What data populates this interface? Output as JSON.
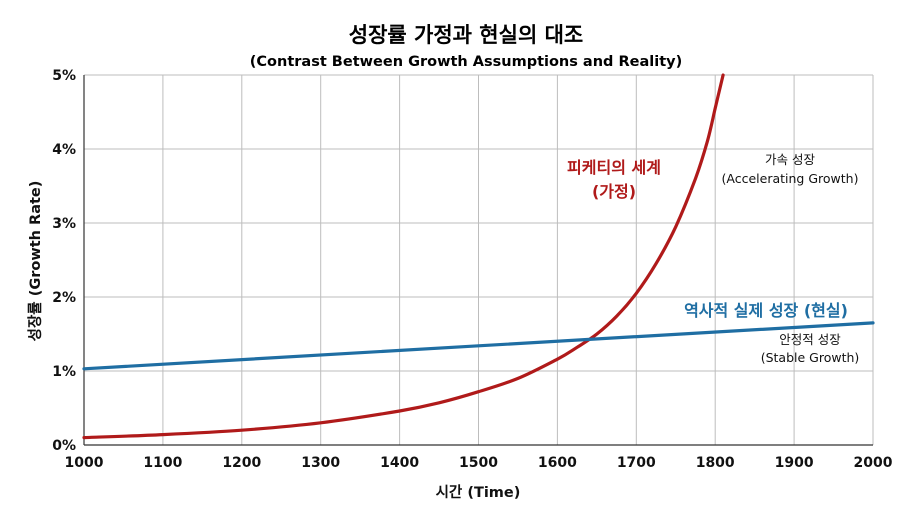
{
  "chart_data": {
    "type": "line",
    "title": "성장률 가정과 현실의 대조",
    "subtitle": "(Contrast Between Growth Assumptions and Reality)",
    "xlabel": "시간 (Time)",
    "ylabel": "성장률 (Growth Rate)",
    "xlim": [
      1000,
      2000
    ],
    "ylim": [
      0,
      5
    ],
    "grid": true,
    "x_ticks": [
      1000,
      1100,
      1200,
      1300,
      1400,
      1500,
      1600,
      1700,
      1800,
      1900,
      2000
    ],
    "x_tick_labels": [
      "1000",
      "1100",
      "1200",
      "1300",
      "1400",
      "1500",
      "1600",
      "1700",
      "1800",
      "1900",
      "2000"
    ],
    "y_ticks": [
      0,
      1,
      2,
      3,
      4,
      5
    ],
    "y_tick_labels": [
      "0%",
      "1%",
      "2%",
      "3%",
      "4%",
      "5%"
    ],
    "series": [
      {
        "name": "피케티의 세계 (가정)",
        "color": "#b01a1a",
        "x": [
          1000,
          1100,
          1200,
          1300,
          1400,
          1450,
          1500,
          1550,
          1600,
          1625,
          1650,
          1675,
          1700,
          1725,
          1750,
          1775,
          1790,
          1800,
          1810
        ],
        "values": [
          0.1,
          0.14,
          0.2,
          0.3,
          0.46,
          0.57,
          0.72,
          0.9,
          1.16,
          1.32,
          1.5,
          1.74,
          2.05,
          2.45,
          2.95,
          3.6,
          4.1,
          4.55,
          5.0
        ]
      },
      {
        "name": "역사적 실제 성장 (현실)",
        "color": "#1f6ea3",
        "x": [
          1000,
          2000
        ],
        "values": [
          1.03,
          1.65
        ]
      }
    ],
    "annotations": {
      "red_line1": "피케티의 세계",
      "red_line2": "(가정)",
      "accel_line1": "가속 성장",
      "accel_line2": "(Accelerating Growth)",
      "blue_label": "역사적 실제 성장 (현실)",
      "stable_line1": "안정적 성장",
      "stable_line2": "(Stable Growth)"
    }
  }
}
